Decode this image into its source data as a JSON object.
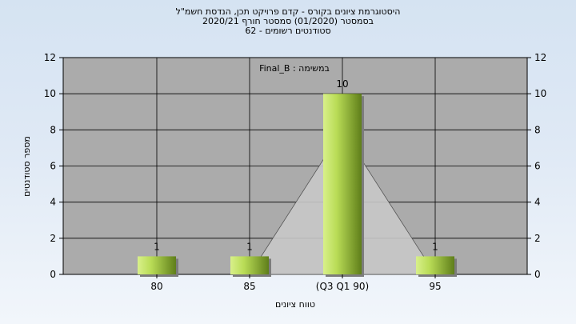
{
  "header": {
    "line1": "היסטוגרמת ציונים בקורס - קדם פרויקט תכן, הנדסת חשמ\"ל",
    "line2": "בסמסטר  (01/2020)  סמסטר חורף  2020/21",
    "line3": "סטודנטים רשומים - 62"
  },
  "chart_data": {
    "type": "bar",
    "annotation": "Final_B : במשימה",
    "categories": [
      "80",
      "85",
      "(Q3 Q1 90)",
      "95"
    ],
    "values": [
      1,
      1,
      10,
      1
    ],
    "data_labels": [
      "1",
      "1",
      "10",
      "1"
    ],
    "xlabel": "טווח ציונים",
    "ylabel": "מספר סטודנטים",
    "ylim": [
      0,
      12
    ],
    "yticks": [
      "0",
      "2",
      "4",
      "6",
      "8",
      "10",
      "12"
    ],
    "grid": true,
    "overlay_area": {
      "peak_category": "(Q3 Q1 90)",
      "peak_value": 8
    },
    "colors": {
      "plot_background": "#ababab",
      "bar_light": "#d8f08a",
      "bar_dark": "#5f7e1a",
      "overlay": "#c8c8c8"
    }
  }
}
